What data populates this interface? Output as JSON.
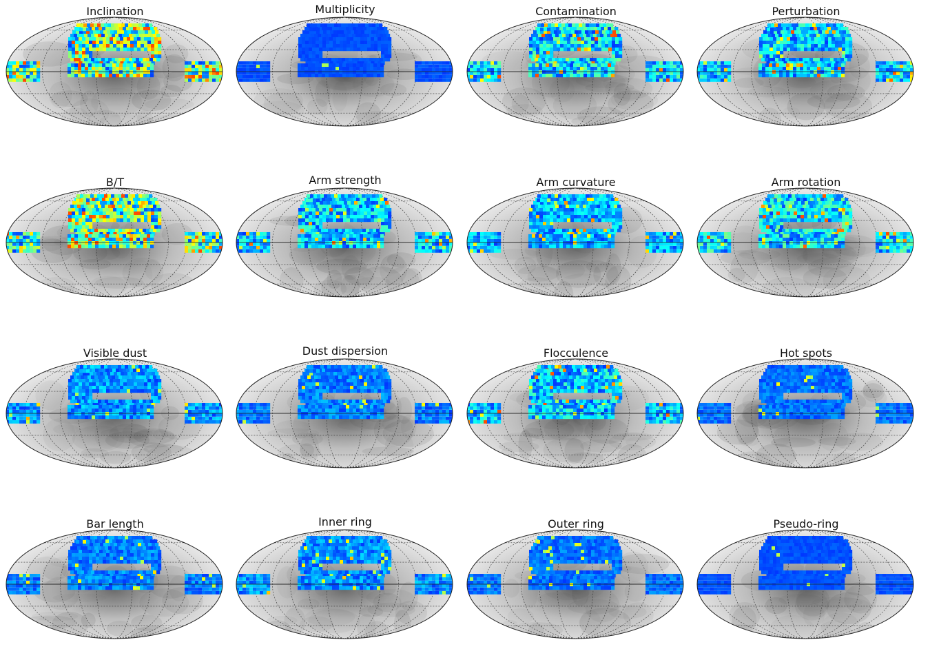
{
  "chart_data": {
    "type": "heatmap",
    "projection": "mollweide",
    "layout": {
      "rows": 4,
      "cols": 4
    },
    "colormap": "jet",
    "background": "grayscale density",
    "grid": true,
    "panels": [
      {
        "title": "Inclination",
        "intensity": 0.55
      },
      {
        "title": "Multiplicity",
        "intensity": 0.05
      },
      {
        "title": "Contamination",
        "intensity": 0.35
      },
      {
        "title": "Perturbation",
        "intensity": 0.3
      },
      {
        "title": "B/T",
        "intensity": 0.55
      },
      {
        "title": "Arm strength",
        "intensity": 0.3
      },
      {
        "title": "Arm curvature",
        "intensity": 0.25
      },
      {
        "title": "Arm rotation",
        "intensity": 0.35
      },
      {
        "title": "Visible dust",
        "intensity": 0.2
      },
      {
        "title": "Dust dispersion",
        "intensity": 0.15
      },
      {
        "title": "Flocculence",
        "intensity": 0.3
      },
      {
        "title": "Hot spots",
        "intensity": 0.12
      },
      {
        "title": "Bar length",
        "intensity": 0.15
      },
      {
        "title": "Inner ring",
        "intensity": 0.18
      },
      {
        "title": "Outer ring",
        "intensity": 0.12
      },
      {
        "title": "Pseudo-ring",
        "intensity": 0.05
      }
    ]
  }
}
